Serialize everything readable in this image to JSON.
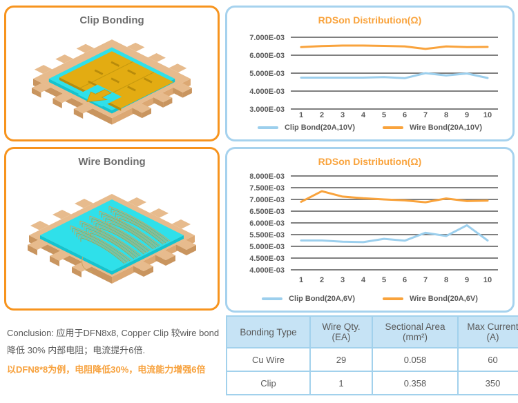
{
  "panels": {
    "clip_bonding": {
      "title": "Clip Bonding"
    },
    "wire_bonding": {
      "title": "Wire Bonding"
    }
  },
  "chart_data": [
    {
      "type": "line",
      "title": "RDSon Distribution(Ω)",
      "x": [
        "1",
        "2",
        "3",
        "4",
        "5",
        "6",
        "7",
        "8",
        "9",
        "10"
      ],
      "yticks": [
        "7.000E-03",
        "6.000E-03",
        "5.000E-03",
        "4.000E-03",
        "3.000E-03"
      ],
      "ylim": [
        0.003,
        0.007
      ],
      "grid": true,
      "legend_position": "bottom",
      "series": [
        {
          "name": "Clip Bond(20A,10V)",
          "color": "#9CCFED",
          "values": [
            0.00475,
            0.00475,
            0.00475,
            0.00475,
            0.00478,
            0.00472,
            0.005,
            0.00487,
            0.00498,
            0.00473
          ]
        },
        {
          "name": "Wire Bond(20A,10V)",
          "color": "#F9A33C",
          "values": [
            0.00645,
            0.00651,
            0.00654,
            0.00654,
            0.00652,
            0.00649,
            0.00635,
            0.00649,
            0.00645,
            0.00646
          ]
        }
      ]
    },
    {
      "type": "line",
      "title": "RDSon Distribution(Ω)",
      "x": [
        "1",
        "2",
        "3",
        "4",
        "5",
        "6",
        "7",
        "8",
        "9",
        "10"
      ],
      "yticks": [
        "8.000E-03",
        "7.500E-03",
        "7.000E-03",
        "6.500E-03",
        "6.000E-03",
        "5.500E-03",
        "5.000E-03",
        "4.500E-03",
        "4.000E-03"
      ],
      "ylim": [
        0.004,
        0.008
      ],
      "grid": true,
      "legend_position": "bottom",
      "series": [
        {
          "name": "Clip Bond(20A,6V)",
          "color": "#9CCFED",
          "values": [
            0.00525,
            0.00525,
            0.0052,
            0.00518,
            0.00532,
            0.00524,
            0.00558,
            0.00544,
            0.0059,
            0.00525
          ]
        },
        {
          "name": "Wire Bond(20A,6V)",
          "color": "#F9A33C",
          "values": [
            0.0069,
            0.00735,
            0.00712,
            0.00705,
            0.007,
            0.00696,
            0.00688,
            0.00704,
            0.00693,
            0.00695
          ]
        }
      ]
    }
  ],
  "conclusion": {
    "line1": "Conclusion: 应用于DFN8x8, Copper Clip 较wire bond",
    "line2": "降低 30% 内部电阻；电流提升6倍.",
    "line3": "以DFN8*8为例，电阻降低30%，电流能力增强6倍"
  },
  "table": {
    "headers": [
      [
        "Bonding Type"
      ],
      [
        "Wire Qty.",
        "(EA)"
      ],
      [
        "Sectional Area",
        "(mm²)"
      ],
      [
        "Max Current",
        "(A)"
      ]
    ],
    "rows": [
      [
        "Cu Wire",
        "29",
        "0.058",
        "60"
      ],
      [
        "Clip",
        "1",
        "0.358",
        "350"
      ]
    ]
  },
  "colors": {
    "panel_border_orange": "#F7941E",
    "panel_border_blue": "#A6D2EE",
    "chart_title_orange": "#F9A33C",
    "line_blue": "#9CCFED",
    "line_orange": "#F9A33C",
    "gridline": "#7F7F7F",
    "axis_text": "#5A5A5A",
    "panel_title_gray": "#6E6E6E",
    "table_header_bg": "#C6E3F5",
    "table_border": "#A2D1EC",
    "conclusion_gray": "#595959",
    "conclusion_orange": "#F7A13C"
  }
}
